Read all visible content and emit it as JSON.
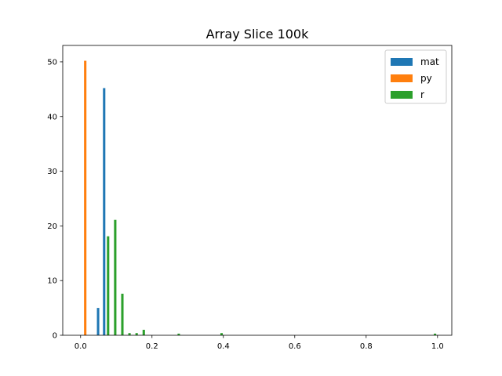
{
  "chart_data": {
    "type": "bar",
    "title": "Array Slice 100k",
    "xlabel": "",
    "ylabel": "",
    "xlim": [
      -0.05,
      1.04
    ],
    "ylim": [
      0,
      53
    ],
    "x_ticks": [
      "0.0",
      "0.2",
      "0.4",
      "0.6",
      "0.8",
      "1.0"
    ],
    "y_ticks": [
      "0",
      "10",
      "20",
      "30",
      "40",
      "50"
    ],
    "grid": false,
    "legend_position": "top-right",
    "bar_width": 0.0067,
    "series": [
      {
        "name": "mat",
        "color": "#1f77b4",
        "bars": [
          {
            "x": 0.049,
            "y": 5
          },
          {
            "x": 0.066,
            "y": 45.2
          }
        ]
      },
      {
        "name": "py",
        "color": "#ff7f0e",
        "bars": [
          {
            "x": 0.013,
            "y": 50.2
          }
        ]
      },
      {
        "name": "r",
        "color": "#2ca02c",
        "bars": [
          {
            "x": 0.077,
            "y": 18.1
          },
          {
            "x": 0.097,
            "y": 21.1
          },
          {
            "x": 0.117,
            "y": 7.6
          },
          {
            "x": 0.137,
            "y": 0.4
          },
          {
            "x": 0.157,
            "y": 0.4
          },
          {
            "x": 0.177,
            "y": 1.0
          },
          {
            "x": 0.275,
            "y": 0.3
          },
          {
            "x": 0.395,
            "y": 0.4
          },
          {
            "x": 0.993,
            "y": 0.3
          }
        ]
      }
    ]
  }
}
